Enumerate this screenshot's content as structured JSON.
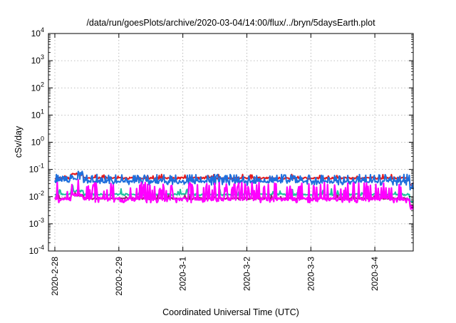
{
  "chart_data": {
    "type": "line",
    "title": "/data/run/goesPlots/archive/2020-03-04/14:00/flux/../bryn/5daysEarth.plot",
    "xlabel": "Coordinated Universal Time (UTC)",
    "ylabel": "cSv/day",
    "yscale": "log",
    "ylim": [
      0.0001,
      10000
    ],
    "xlim": [
      -0.1,
      5.6
    ],
    "grid": true,
    "y_ticks": [
      {
        "value": 0.0001,
        "base": "10",
        "exp": "-4"
      },
      {
        "value": 0.001,
        "base": "10",
        "exp": "-3"
      },
      {
        "value": 0.01,
        "base": "10",
        "exp": "-2"
      },
      {
        "value": 0.1,
        "base": "10",
        "exp": "-1"
      },
      {
        "value": 1,
        "base": "10",
        "exp": "0"
      },
      {
        "value": 10,
        "base": "10",
        "exp": "1"
      },
      {
        "value": 100,
        "base": "10",
        "exp": "2"
      },
      {
        "value": 1000,
        "base": "10",
        "exp": "3"
      },
      {
        "value": 10000,
        "base": "10",
        "exp": "4"
      }
    ],
    "x_ticks": [
      {
        "value": 0,
        "label": "2020-2-28"
      },
      {
        "value": 1,
        "label": "2020-2-29"
      },
      {
        "value": 2,
        "label": "2020-3-1"
      },
      {
        "value": 3,
        "label": "2020-3-2"
      },
      {
        "value": 4,
        "label": "2020-3-3"
      },
      {
        "value": 5,
        "label": "2020-3-4"
      }
    ],
    "series": [
      {
        "color": "#e41a1c",
        "base": 0.048,
        "amp": 0.018,
        "style": "steady"
      },
      {
        "color": "#1f6fdc",
        "base": 0.035,
        "amp": 0.022,
        "style": "spiky"
      },
      {
        "color": "#20c0a0",
        "base": 0.012,
        "amp": 0.008,
        "style": "steady"
      },
      {
        "color": "#a0207a",
        "base": 0.0085,
        "amp": 0.003,
        "style": "steady"
      },
      {
        "color": "#ff00ff",
        "base": 0.008,
        "amp": 0.018,
        "style": "spiky"
      }
    ]
  }
}
